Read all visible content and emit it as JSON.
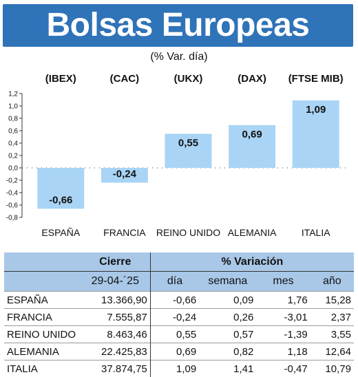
{
  "header": {
    "title": "Bolsas Europeas",
    "subtitle": "(% Var. día)"
  },
  "chart_data": {
    "type": "bar",
    "title": "Bolsas Europeas",
    "subtitle": "(% Var. día)",
    "categories": [
      "ESPAÑA",
      "FRANCIA",
      "REINO UNIDO",
      "ALEMANIA",
      "ITALIA"
    ],
    "index_labels": [
      "(IBEX)",
      "(CAC)",
      "(UKX)",
      "(DAX)",
      "(FTSE MIB)"
    ],
    "values": [
      -0.66,
      -0.24,
      0.55,
      0.69,
      1.09
    ],
    "data_labels": [
      "-0,66",
      "-0,24",
      "0,55",
      "0,69",
      "1,09"
    ],
    "yticks": [
      "1,2",
      "1,0",
      "0,8",
      "0,6",
      "0,4",
      "0,2",
      "0,0",
      "-0,2",
      "-0,4",
      "-0,6",
      "-0,8"
    ],
    "ylim": [
      -0.8,
      1.2
    ],
    "bar_color": "#a9d4f5",
    "grid": false
  },
  "table": {
    "group_headers": [
      "Cierre",
      "% Variación"
    ],
    "columns": [
      "29-04-´25",
      "día",
      "semana",
      "mes",
      "año"
    ],
    "rows": [
      {
        "name": "ESPAÑA",
        "cierre": "13.366,90",
        "dia": "-0,66",
        "semana": "0,09",
        "mes": "1,76",
        "ano": "15,28"
      },
      {
        "name": "FRANCIA",
        "cierre": "7.555,87",
        "dia": "-0,24",
        "semana": "0,26",
        "mes": "-3,01",
        "ano": "2,37"
      },
      {
        "name": "REINO UNIDO",
        "cierre": "8.463,46",
        "dia": "0,55",
        "semana": "0,57",
        "mes": "-1,39",
        "ano": "3,55"
      },
      {
        "name": "ALEMANIA",
        "cierre": "22.425,83",
        "dia": "0,69",
        "semana": "0,82",
        "mes": "1,18",
        "ano": "12,64"
      },
      {
        "name": "ITALIA",
        "cierre": "37.874,75",
        "dia": "1,09",
        "semana": "1,41",
        "mes": "-0,47",
        "ano": "10,79"
      }
    ],
    "header_color": "#a9c8e8"
  }
}
